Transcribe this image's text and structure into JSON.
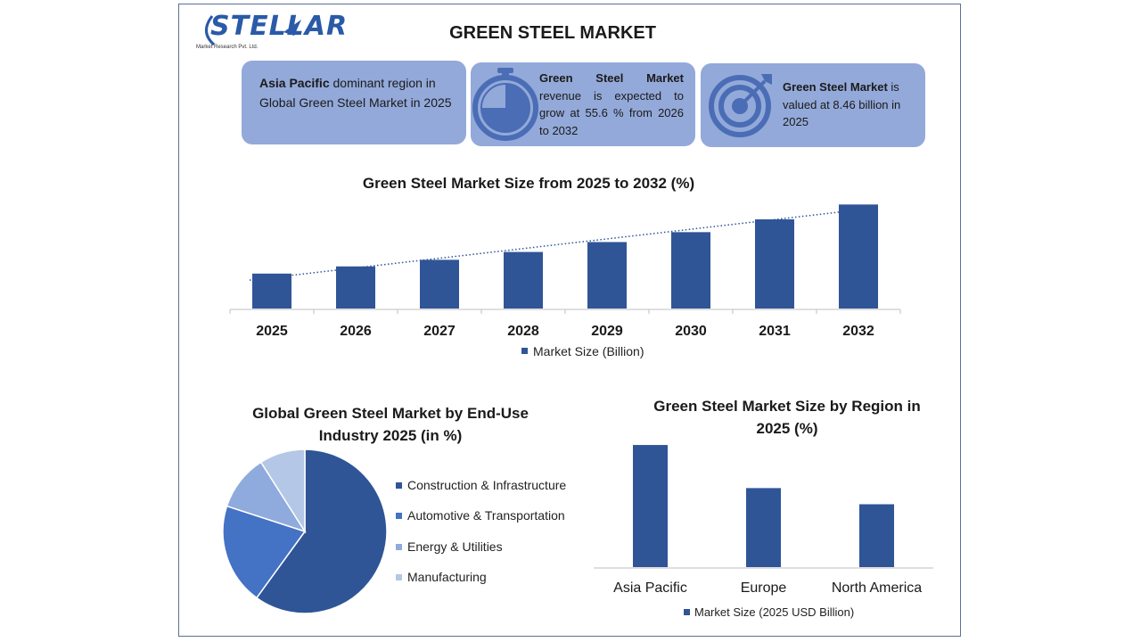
{
  "logo": {
    "name": "STELLAR",
    "subtitle": "Market Research Pvt. Ltd."
  },
  "title": "GREEN STEEL MARKET",
  "cards": [
    {
      "bold": "Asia Pacific",
      "text": " dominant region in Global Green Steel Market in 2025",
      "icon": "none"
    },
    {
      "bold": "Green Steel Market",
      "text": " revenue is expected to grow at 55.6 % from 2026 to 2032",
      "icon": "stopwatch-icon"
    },
    {
      "bold": "Green Steel Market",
      "text": " is valued at 8.46 billion in 2025",
      "icon": "target-icon"
    }
  ],
  "colors": {
    "primary": "#2f5597",
    "medium": "#4472c4",
    "light": "#8faadc",
    "pale": "#b4c7e7",
    "card": "#93a9d9"
  },
  "chart_data": [
    {
      "type": "bar",
      "title": "Green Steel Market Size from 2025 to 2032 (%)",
      "categories": [
        "2025",
        "2026",
        "2027",
        "2028",
        "2029",
        "2030",
        "2031",
        "2032"
      ],
      "series": [
        {
          "name": "Market Size (Billion)",
          "values": [
            8.46,
            10.2,
            11.8,
            13.7,
            16.1,
            18.5,
            21.6,
            25.2
          ]
        }
      ],
      "trendline": "linear dotted",
      "legend": "bottom",
      "ylim": [
        0,
        27
      ]
    },
    {
      "type": "pie",
      "title": "Global Green Steel Market by End-Use Industry 2025 (in %)",
      "categories": [
        "Construction & Infrastructure",
        "Automotive & Transportation",
        "Energy & Utilities",
        "Manufacturing"
      ],
      "values": [
        60,
        20,
        11,
        9
      ],
      "legend": "right"
    },
    {
      "type": "bar",
      "title": "Green Steel Market Size by Region in 2025 (%)",
      "categories": [
        "Asia Pacific",
        "Europe",
        "North America"
      ],
      "series": [
        {
          "name": "Market Size (2025 USD Billion)",
          "values": [
            3.4,
            2.2,
            1.75
          ]
        }
      ],
      "legend": "bottom",
      "ylim": [
        0,
        3.6
      ]
    }
  ]
}
